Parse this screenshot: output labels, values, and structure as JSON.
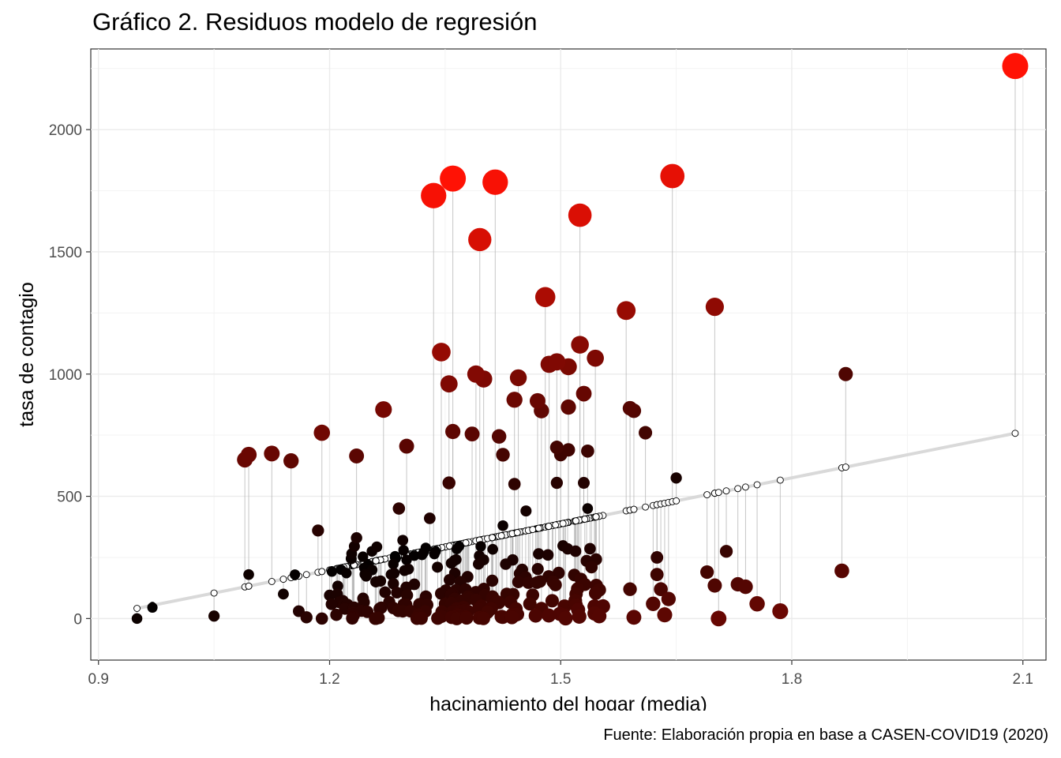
{
  "title": "Gráfico 2. Residuos modelo de regresión",
  "caption": "Fuente: Elaboración propia en base a CASEN-COVID19 (2020)",
  "chart_data": {
    "type": "scatter",
    "title": "Gráfico 2. Residuos modelo de regresión",
    "xlabel": "hacinamiento del hogar (media)",
    "ylabel": "tasa de contagio",
    "xlim": [
      0.89,
      2.13
    ],
    "ylim": [
      -170,
      2330
    ],
    "x_ticks": [
      0.9,
      1.2,
      1.5,
      1.8,
      2.1
    ],
    "x_tick_labels": [
      "0.9",
      "1.2",
      "1.5",
      "1.8",
      "2.1"
    ],
    "y_ticks": [
      0,
      500,
      1000,
      1500,
      2000
    ],
    "y_tick_labels": [
      "0",
      "500",
      "1000",
      "1500",
      "2000"
    ],
    "grid": true,
    "legend": "none",
    "regression_line": {
      "intercept": -555.4,
      "slope": 628.3
    },
    "colors": {
      "low_residual": "#000000",
      "high_residual": "#ff0000",
      "fitted_line": "#d9d9d9",
      "segment": "#b3b3b3",
      "grid": "#ebebeb"
    },
    "points": [
      {
        "x": 0.95,
        "y": 0
      },
      {
        "x": 0.97,
        "y": 45
      },
      {
        "x": 1.05,
        "y": 10
      },
      {
        "x": 1.09,
        "y": 650
      },
      {
        "x": 1.095,
        "y": 670
      },
      {
        "x": 1.095,
        "y": 180
      },
      {
        "x": 1.125,
        "y": 675
      },
      {
        "x": 1.15,
        "y": 645
      },
      {
        "x": 1.14,
        "y": 100
      },
      {
        "x": 1.155,
        "y": 180
      },
      {
        "x": 1.16,
        "y": 30
      },
      {
        "x": 1.17,
        "y": 5
      },
      {
        "x": 1.185,
        "y": 360
      },
      {
        "x": 1.19,
        "y": 760
      },
      {
        "x": 1.19,
        "y": 0
      },
      {
        "x": 1.21,
        "y": 100
      },
      {
        "x": 1.215,
        "y": 200
      },
      {
        "x": 1.22,
        "y": 40
      },
      {
        "x": 1.235,
        "y": 665
      },
      {
        "x": 1.235,
        "y": 330
      },
      {
        "x": 1.25,
        "y": 220
      },
      {
        "x": 1.255,
        "y": 275
      },
      {
        "x": 1.26,
        "y": 150
      },
      {
        "x": 1.265,
        "y": 40
      },
      {
        "x": 1.27,
        "y": 855
      },
      {
        "x": 1.28,
        "y": 180
      },
      {
        "x": 1.285,
        "y": 255
      },
      {
        "x": 1.29,
        "y": 450
      },
      {
        "x": 1.295,
        "y": 320
      },
      {
        "x": 1.3,
        "y": 705
      },
      {
        "x": 1.3,
        "y": 240
      },
      {
        "x": 1.305,
        "y": 30
      },
      {
        "x": 1.31,
        "y": 140
      },
      {
        "x": 1.32,
        "y": 260
      },
      {
        "x": 1.325,
        "y": 90
      },
      {
        "x": 1.33,
        "y": 410
      },
      {
        "x": 1.335,
        "y": 1730
      },
      {
        "x": 1.34,
        "y": 210
      },
      {
        "x": 1.345,
        "y": 1090
      },
      {
        "x": 1.35,
        "y": 60
      },
      {
        "x": 1.355,
        "y": 960
      },
      {
        "x": 1.355,
        "y": 555
      },
      {
        "x": 1.36,
        "y": 1800
      },
      {
        "x": 1.36,
        "y": 765
      },
      {
        "x": 1.365,
        "y": 40
      },
      {
        "x": 1.37,
        "y": 150
      },
      {
        "x": 1.38,
        "y": 90
      },
      {
        "x": 1.385,
        "y": 755
      },
      {
        "x": 1.39,
        "y": 1000
      },
      {
        "x": 1.395,
        "y": 1550
      },
      {
        "x": 1.4,
        "y": 980
      },
      {
        "x": 1.4,
        "y": 240
      },
      {
        "x": 1.41,
        "y": 40
      },
      {
        "x": 1.415,
        "y": 1785
      },
      {
        "x": 1.42,
        "y": 745
      },
      {
        "x": 1.425,
        "y": 670
      },
      {
        "x": 1.425,
        "y": 380
      },
      {
        "x": 1.43,
        "y": 100
      },
      {
        "x": 1.44,
        "y": 895
      },
      {
        "x": 1.44,
        "y": 550
      },
      {
        "x": 1.445,
        "y": 985
      },
      {
        "x": 1.45,
        "y": 200
      },
      {
        "x": 1.455,
        "y": 440
      },
      {
        "x": 1.46,
        "y": 60
      },
      {
        "x": 1.47,
        "y": 890
      },
      {
        "x": 1.475,
        "y": 40
      },
      {
        "x": 1.475,
        "y": 850
      },
      {
        "x": 1.48,
        "y": 1315
      },
      {
        "x": 1.485,
        "y": 1040
      },
      {
        "x": 1.49,
        "y": 150
      },
      {
        "x": 1.495,
        "y": 1050
      },
      {
        "x": 1.495,
        "y": 700
      },
      {
        "x": 1.495,
        "y": 555
      },
      {
        "x": 1.5,
        "y": 670
      },
      {
        "x": 1.505,
        "y": 50
      },
      {
        "x": 1.51,
        "y": 1030
      },
      {
        "x": 1.51,
        "y": 865
      },
      {
        "x": 1.51,
        "y": 690
      },
      {
        "x": 1.52,
        "y": 100
      },
      {
        "x": 1.525,
        "y": 1650
      },
      {
        "x": 1.525,
        "y": 1120
      },
      {
        "x": 1.53,
        "y": 555
      },
      {
        "x": 1.53,
        "y": 920
      },
      {
        "x": 1.535,
        "y": 450
      },
      {
        "x": 1.535,
        "y": 685
      },
      {
        "x": 1.54,
        "y": 210
      },
      {
        "x": 1.545,
        "y": 1065
      },
      {
        "x": 1.55,
        "y": 10
      },
      {
        "x": 1.555,
        "y": 50
      },
      {
        "x": 1.585,
        "y": 1260
      },
      {
        "x": 1.59,
        "y": 860
      },
      {
        "x": 1.59,
        "y": 120
      },
      {
        "x": 1.595,
        "y": 5
      },
      {
        "x": 1.595,
        "y": 850
      },
      {
        "x": 1.61,
        "y": 760
      },
      {
        "x": 1.62,
        "y": 60
      },
      {
        "x": 1.625,
        "y": 250
      },
      {
        "x": 1.625,
        "y": 180
      },
      {
        "x": 1.63,
        "y": 120
      },
      {
        "x": 1.635,
        "y": 15
      },
      {
        "x": 1.64,
        "y": 80
      },
      {
        "x": 1.645,
        "y": 1810
      },
      {
        "x": 1.65,
        "y": 575
      },
      {
        "x": 1.69,
        "y": 190
      },
      {
        "x": 1.7,
        "y": 1275
      },
      {
        "x": 1.7,
        "y": 135
      },
      {
        "x": 1.705,
        "y": 0
      },
      {
        "x": 1.715,
        "y": 275
      },
      {
        "x": 1.73,
        "y": 140
      },
      {
        "x": 1.74,
        "y": 130
      },
      {
        "x": 1.755,
        "y": 60
      },
      {
        "x": 1.785,
        "y": 30
      },
      {
        "x": 1.865,
        "y": 195
      },
      {
        "x": 1.87,
        "y": 1000
      },
      {
        "x": 2.09,
        "y": 2260
      }
    ],
    "cluster_fill_x_range": [
      1.2,
      1.56
    ],
    "cluster_fill_y_range": [
      0,
      300
    ]
  }
}
